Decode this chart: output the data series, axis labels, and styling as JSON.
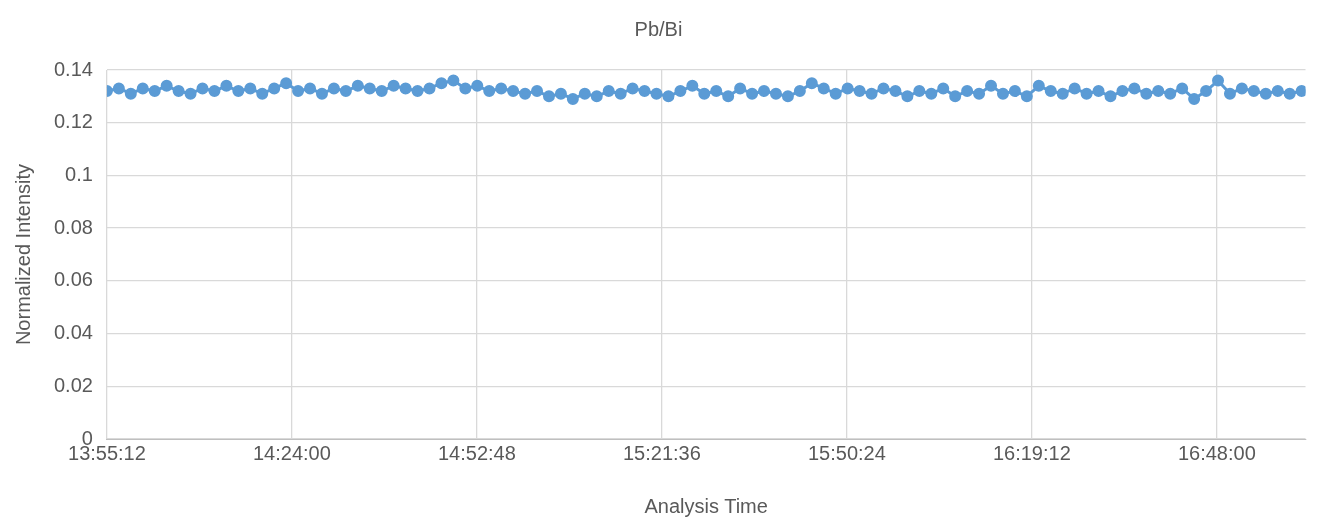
{
  "chart_data": {
    "type": "line",
    "title": "Pb/Bi",
    "xlabel": "Analysis Time",
    "ylabel": "Normalized Intensity",
    "x": [
      13.92,
      13.951,
      13.982,
      14.013,
      14.044,
      14.075,
      14.106,
      14.137,
      14.168,
      14.199,
      14.23,
      14.261,
      14.292,
      14.323,
      14.354,
      14.385,
      14.416,
      14.447,
      14.478,
      14.509,
      14.54,
      14.571,
      14.602,
      14.633,
      14.664,
      14.695,
      14.726,
      14.757,
      14.788,
      14.819,
      14.85,
      14.881,
      14.912,
      14.943,
      14.974,
      15.005,
      15.036,
      15.067,
      15.098,
      15.129,
      15.16,
      15.191,
      15.222,
      15.253,
      15.284,
      15.315,
      15.346,
      15.377,
      15.408,
      15.439,
      15.47,
      15.501,
      15.532,
      15.563,
      15.594,
      15.625,
      15.656,
      15.687,
      15.718,
      15.749,
      15.78,
      15.811,
      15.842,
      15.873,
      15.904,
      15.935,
      15.966,
      15.997,
      16.028,
      16.059,
      16.09,
      16.121,
      16.152,
      16.183,
      16.214,
      16.245,
      16.276,
      16.307,
      16.338,
      16.369,
      16.4,
      16.431,
      16.462,
      16.493,
      16.524,
      16.555,
      16.586,
      16.617,
      16.648,
      16.679,
      16.71,
      16.741,
      16.772,
      16.803,
      16.834,
      16.865,
      16.896,
      16.927,
      16.958,
      16.989,
      17.02
    ],
    "values": [
      0.132,
      0.133,
      0.131,
      0.133,
      0.132,
      0.134,
      0.132,
      0.131,
      0.133,
      0.132,
      0.134,
      0.132,
      0.133,
      0.131,
      0.133,
      0.135,
      0.132,
      0.133,
      0.131,
      0.133,
      0.132,
      0.134,
      0.133,
      0.132,
      0.134,
      0.133,
      0.132,
      0.133,
      0.135,
      0.136,
      0.133,
      0.134,
      0.132,
      0.133,
      0.132,
      0.131,
      0.132,
      0.13,
      0.131,
      0.129,
      0.131,
      0.13,
      0.132,
      0.131,
      0.133,
      0.132,
      0.131,
      0.13,
      0.132,
      0.134,
      0.131,
      0.132,
      0.13,
      0.133,
      0.131,
      0.132,
      0.131,
      0.13,
      0.132,
      0.135,
      0.133,
      0.131,
      0.133,
      0.132,
      0.131,
      0.133,
      0.132,
      0.13,
      0.132,
      0.131,
      0.133,
      0.13,
      0.132,
      0.131,
      0.134,
      0.131,
      0.132,
      0.13,
      0.134,
      0.132,
      0.131,
      0.133,
      0.131,
      0.132,
      0.13,
      0.132,
      0.133,
      0.131,
      0.132,
      0.131,
      0.133,
      0.129,
      0.132,
      0.136,
      0.131,
      0.133,
      0.132,
      0.131,
      0.132,
      0.131,
      0.132
    ],
    "color": "#5b9bd5",
    "xlim": [
      13.92,
      17.03
    ],
    "xticks": [
      {
        "value": 13.92,
        "label": "13:55:12"
      },
      {
        "value": 14.4,
        "label": "14:24:00"
      },
      {
        "value": 14.88,
        "label": "14:52:48"
      },
      {
        "value": 15.36,
        "label": "15:21:36"
      },
      {
        "value": 15.84,
        "label": "15:50:24"
      },
      {
        "value": 16.32,
        "label": "16:19:12"
      },
      {
        "value": 16.8,
        "label": "16:48:00"
      }
    ],
    "ylim": [
      0,
      0.14
    ],
    "yticks": [
      0,
      0.02,
      0.04,
      0.06,
      0.08,
      0.1,
      0.12,
      0.14
    ],
    "grid": true,
    "legend": false,
    "marker": "circle",
    "line_style": "solid"
  }
}
